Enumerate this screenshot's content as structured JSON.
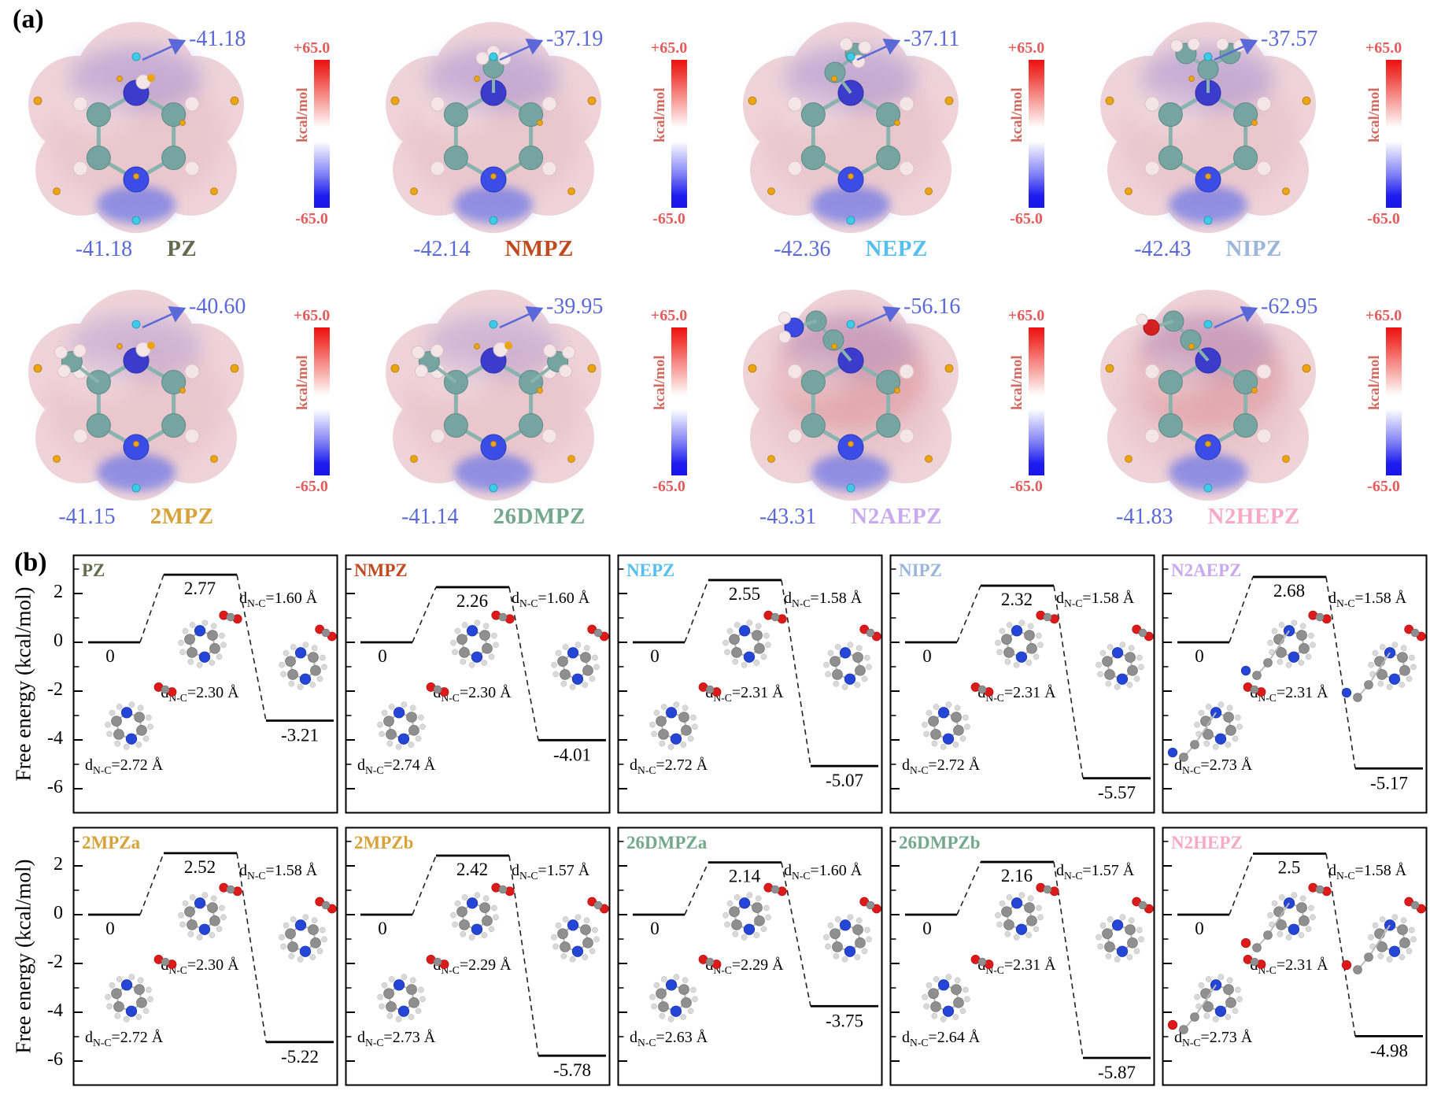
{
  "figure": {
    "panel_a_label": "(a)",
    "panel_b_label": "(b)"
  },
  "chart_data": {
    "panel_a_esp": {
      "type": "esp-surface-grid",
      "description_colors": {
        "value_text": "#5a68d8",
        "colorbar_text": "#e25c5c"
      },
      "colorbar": {
        "max": "+65.0",
        "min": "-65.0",
        "unit": "kcal/mol",
        "top_color": "#ee1111",
        "bottom_color": "#1d1df0"
      },
      "molecules": [
        {
          "name": "PZ",
          "label_color": "#636a4d",
          "top_esp": "-41.18",
          "bottom_esp": "-41.18",
          "substituent": "none"
        },
        {
          "name": "NMPZ",
          "label_color": "#c04a1f",
          "top_esp": "-37.19",
          "bottom_esp": "-42.14",
          "substituent": "methyl"
        },
        {
          "name": "NEPZ",
          "label_color": "#55c0f0",
          "top_esp": "-37.11",
          "bottom_esp": "-42.36",
          "substituent": "ethyl"
        },
        {
          "name": "NIPZ",
          "label_color": "#9cb5db",
          "top_esp": "-37.57",
          "bottom_esp": "-42.43",
          "substituent": "isopropyl"
        },
        {
          "name": "2MPZ",
          "label_color": "#d8a23b",
          "top_esp": "-40.60",
          "bottom_esp": "-41.15",
          "substituent": "ring-methyl"
        },
        {
          "name": "26DMPZ",
          "label_color": "#74a88c",
          "top_esp": "-39.95",
          "bottom_esp": "-41.14",
          "substituent": "ring-dimethyl"
        },
        {
          "name": "N2AEPZ",
          "label_color": "#c9a9ef",
          "top_esp": "-56.16",
          "bottom_esp": "-43.31",
          "substituent": "aminoethyl"
        },
        {
          "name": "N2HEPZ",
          "label_color": "#f9a9c6",
          "top_esp": "-62.95",
          "bottom_esp": "-41.83",
          "substituent": "hydroxyethyl"
        }
      ]
    },
    "panel_b_energy": {
      "type": "energy-diagram-grid",
      "ylabel": "Free energy (kcal/mol)",
      "yticks": [
        2,
        0,
        -2,
        -4,
        -6
      ],
      "ylim": [
        -6.8,
        3.1
      ],
      "d_prefix": "d",
      "d_sub": "N-C",
      "d_unit": "Å",
      "diagrams": [
        {
          "name": "PZ",
          "label_color": "#636a4d",
          "levels": [
            0,
            2.77,
            -3.21
          ],
          "level_labels": [
            "0",
            "2.77",
            "-3.21"
          ],
          "dnc": [
            "2.72",
            "2.30",
            "1.60"
          ],
          "tail": null
        },
        {
          "name": "NMPZ",
          "label_color": "#c04a1f",
          "levels": [
            0,
            2.26,
            -4.01
          ],
          "level_labels": [
            "0",
            "2.26",
            "-4.01"
          ],
          "dnc": [
            "2.74",
            "2.30",
            "1.60"
          ],
          "tail": null
        },
        {
          "name": "NEPZ",
          "label_color": "#55c0f0",
          "levels": [
            0,
            2.55,
            -5.07
          ],
          "level_labels": [
            "0",
            "2.55",
            "-5.07"
          ],
          "dnc": [
            "2.72",
            "2.31",
            "1.58"
          ],
          "tail": null
        },
        {
          "name": "NIPZ",
          "label_color": "#9cb5db",
          "levels": [
            0,
            2.32,
            -5.57
          ],
          "level_labels": [
            "0",
            "2.32",
            "-5.57"
          ],
          "dnc": [
            "2.72",
            "2.31",
            "1.58"
          ],
          "tail": null
        },
        {
          "name": "N2AEPZ",
          "label_color": "#c9a9ef",
          "levels": [
            0,
            2.68,
            -5.17
          ],
          "level_labels": [
            "0",
            "2.68",
            "-5.17"
          ],
          "dnc": [
            "2.73",
            "2.31",
            "1.58"
          ],
          "tail": "amine"
        },
        {
          "name": "2MPZa",
          "label_color": "#d8a23b",
          "levels": [
            0,
            2.52,
            -5.22
          ],
          "level_labels": [
            "0",
            "2.52",
            "-5.22"
          ],
          "dnc": [
            "2.72",
            "2.30",
            "1.58"
          ],
          "tail": null
        },
        {
          "name": "2MPZb",
          "label_color": "#d8a23b",
          "levels": [
            0,
            2.42,
            -5.78
          ],
          "level_labels": [
            "0",
            "2.42",
            "-5.78"
          ],
          "dnc": [
            "2.73",
            "2.29",
            "1.57"
          ],
          "tail": null
        },
        {
          "name": "26DMPZa",
          "label_color": "#74a88c",
          "levels": [
            0,
            2.14,
            -3.75
          ],
          "level_labels": [
            "0",
            "2.14",
            "-3.75"
          ],
          "dnc": [
            "2.63",
            "2.29",
            "1.60"
          ],
          "tail": null
        },
        {
          "name": "26DMPZb",
          "label_color": "#74a88c",
          "levels": [
            0,
            2.16,
            -5.87
          ],
          "level_labels": [
            "0",
            "2.16",
            "-5.87"
          ],
          "dnc": [
            "2.64",
            "2.31",
            "1.57"
          ],
          "tail": null
        },
        {
          "name": "N2HEPZ",
          "label_color": "#f9a9c6",
          "levels": [
            0,
            2.5,
            -4.98
          ],
          "level_labels": [
            "0",
            "2.5",
            "-4.98"
          ],
          "dnc": [
            "2.73",
            "2.31",
            "1.58"
          ],
          "tail": "hydroxyl"
        }
      ]
    }
  }
}
